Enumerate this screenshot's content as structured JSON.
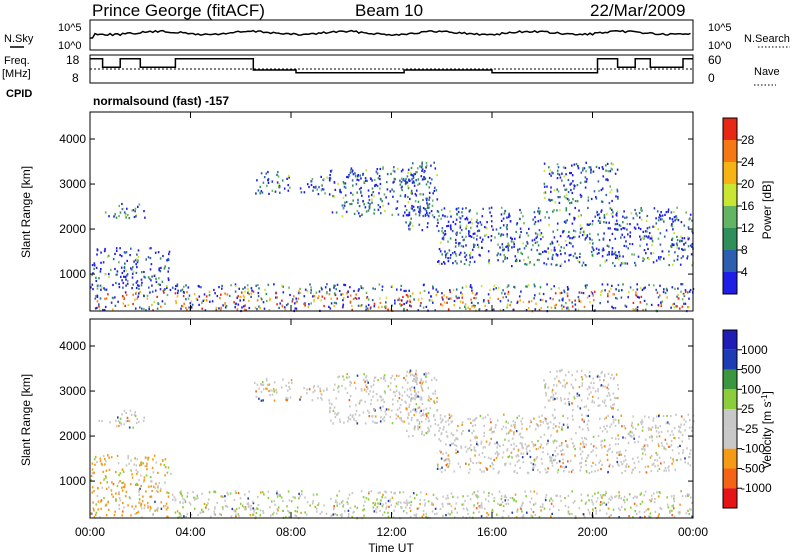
{
  "header": {
    "station": "Prince George (fitACF)",
    "beam": "Beam 10",
    "date": "22/Mar/2009"
  },
  "left_labels": {
    "nsky": "N.Sky",
    "freq": "Freq.",
    "freq_unit": "[MHz]",
    "cpid": "CPID"
  },
  "right_labels": {
    "nsearch": "N.Search",
    "nave": "Nave"
  },
  "cpid_text": "normalsound (fast) -157",
  "xaxis": {
    "label": "Time UT",
    "ticks": [
      "00:00",
      "04:00",
      "08:00",
      "12:00",
      "16:00",
      "20:00",
      "00:00"
    ]
  },
  "colors": {
    "power": [
      "#1e1ee6",
      "#2c5fb0",
      "#2f8f5a",
      "#64b464",
      "#c8e632",
      "#f5b414",
      "#f57814",
      "#e62814"
    ],
    "velocity": [
      "#e61414",
      "#f56414",
      "#f59a14",
      "#c8c8c8",
      "#c8c8c8",
      "#8ccd3c",
      "#3c9640",
      "#1e3cb4",
      "#1e1eb4"
    ]
  },
  "chart_data": [
    {
      "type": "line",
      "name": "noise-panel",
      "left_axis": {
        "label": "N.Sky",
        "ticks": [
          "10^5",
          "10^0"
        ]
      },
      "right_axis": {
        "label": "N.Search",
        "ticks": [
          "10^5",
          "10^0"
        ]
      },
      "xlim": [
        0,
        24
      ]
    },
    {
      "type": "line",
      "name": "frequency-panel",
      "left_axis": {
        "label": "Freq. [MHz]",
        "ticks": [
          18,
          8
        ],
        "ylim": [
          8,
          18
        ]
      },
      "right_axis": {
        "label": "Nave",
        "ticks": [
          60,
          0
        ],
        "ylim": [
          0,
          60
        ]
      },
      "xlim": [
        0,
        24
      ],
      "freq_steps": [
        {
          "t": 0,
          "v": 17
        },
        {
          "t": 0.5,
          "v": 17
        },
        {
          "t": 0.5,
          "v": 14
        },
        {
          "t": 1.2,
          "v": 14
        },
        {
          "t": 1.2,
          "v": 17
        },
        {
          "t": 2.0,
          "v": 17
        },
        {
          "t": 2.0,
          "v": 14
        },
        {
          "t": 3.4,
          "v": 14
        },
        {
          "t": 3.4,
          "v": 17
        },
        {
          "t": 6.5,
          "v": 17
        },
        {
          "t": 6.5,
          "v": 13
        },
        {
          "t": 8.2,
          "v": 13
        },
        {
          "t": 8.2,
          "v": 12
        },
        {
          "t": 12.5,
          "v": 12
        },
        {
          "t": 12.5,
          "v": 13
        },
        {
          "t": 16.0,
          "v": 13
        },
        {
          "t": 16.0,
          "v": 12
        },
        {
          "t": 20.2,
          "v": 12
        },
        {
          "t": 20.2,
          "v": 17
        },
        {
          "t": 21.0,
          "v": 17
        },
        {
          "t": 21.0,
          "v": 14
        },
        {
          "t": 21.7,
          "v": 14
        },
        {
          "t": 21.7,
          "v": 17
        },
        {
          "t": 22.3,
          "v": 17
        },
        {
          "t": 22.3,
          "v": 14
        },
        {
          "t": 23.6,
          "v": 14
        },
        {
          "t": 23.6,
          "v": 17
        },
        {
          "t": 24,
          "v": 17
        }
      ],
      "nave_level": 30
    },
    {
      "type": "heatmap",
      "name": "power-panel",
      "ylabel": "Slant Range [km]",
      "xlabel": "",
      "yticks": [
        1000,
        2000,
        3000,
        4000
      ],
      "ylim": [
        180,
        4600
      ],
      "xlim": [
        0,
        24
      ],
      "colorbar": {
        "label": "Power [dB]",
        "ticks": [
          4,
          8,
          12,
          16,
          20,
          24,
          28
        ],
        "range": [
          0,
          32
        ]
      },
      "regions": [
        {
          "t0": 0.2,
          "t1": 1.4,
          "r0": 2300,
          "r1": 2400
        },
        {
          "t0": 1.0,
          "t1": 2.2,
          "r0": 2200,
          "r1": 2600
        },
        {
          "t0": 6.5,
          "t1": 8.0,
          "r0": 2800,
          "r1": 3300
        },
        {
          "t0": 8.3,
          "t1": 9.5,
          "r0": 2800,
          "r1": 3200
        },
        {
          "t0": 9.5,
          "t1": 13.5,
          "r0": 2300,
          "r1": 3400
        },
        {
          "t0": 12.5,
          "t1": 13.8,
          "r0": 2000,
          "r1": 3500
        },
        {
          "t0": 13.8,
          "t1": 24.0,
          "r0": 1200,
          "r1": 2500
        },
        {
          "t0": 18.0,
          "t1": 21.0,
          "r0": 2600,
          "r1": 3500
        },
        {
          "t0": 0.0,
          "t1": 3.2,
          "r0": 200,
          "r1": 1600
        },
        {
          "t0": 3.2,
          "t1": 24.0,
          "r0": 200,
          "r1": 800
        }
      ]
    },
    {
      "type": "heatmap",
      "name": "velocity-panel",
      "ylabel": "Slant Range [km]",
      "xlabel": "Time UT",
      "yticks": [
        1000,
        2000,
        3000,
        4000
      ],
      "ylim": [
        180,
        4600
      ],
      "xlim": [
        0,
        24
      ],
      "colorbar": {
        "label": "Velocity [m s^-1]",
        "ticks": [
          1000,
          500,
          100,
          25,
          -25,
          -100,
          -500,
          -1000
        ]
      }
    }
  ]
}
